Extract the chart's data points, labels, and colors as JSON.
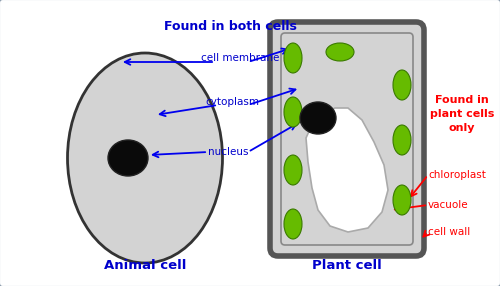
{
  "bg_color": "#ffffff",
  "border_color": "#8899aa",
  "animal_cell_color": "#d3d3d3",
  "animal_cell_outline": "#333333",
  "nucleus_color": "#0a0a0a",
  "plant_cell_bg": "#d3d3d3",
  "plant_cell_border_outer": "#555555",
  "plant_cell_border_inner": "#888888",
  "chloroplast_color": "#66bb00",
  "chloroplast_edge": "#3a7a00",
  "vacuole_color": "#ffffff",
  "vacuole_edge": "#aaaaaa",
  "found_both_color": "#0000cc",
  "found_plant_color": "#ff0000",
  "arrow_blue": "#0000ee",
  "arrow_red": "#ff0000",
  "animal_label": "Animal cell",
  "plant_label": "Plant cell",
  "found_both_text": "Found in both cells",
  "found_plant_text": "Found in\nplant cells\nonly",
  "label_membrane": "cell membrane",
  "label_cytoplasm": "cytoplasm",
  "label_nucleus": "nucleus",
  "label_chloroplast": "chloroplast",
  "label_vacuole": "vacuole",
  "label_wall": "cell wall"
}
